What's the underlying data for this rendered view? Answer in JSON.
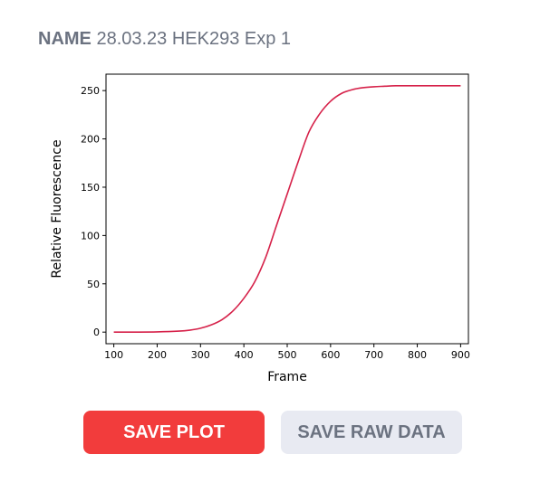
{
  "header": {
    "name_label": "NAME",
    "name_value": "28.03.23 HEK293 Exp 1"
  },
  "chart_data": {
    "type": "line",
    "xlabel": "Frame",
    "ylabel": "Relative Fluorescence",
    "xlim": [
      82,
      918
    ],
    "ylim": [
      -12,
      267
    ],
    "x_ticks": [
      100,
      200,
      300,
      400,
      500,
      600,
      700,
      800,
      900
    ],
    "y_ticks": [
      0,
      50,
      100,
      150,
      200,
      250
    ],
    "grid": false,
    "color": "#d6224a",
    "series": [
      {
        "x": [
          100,
          150,
          200,
          250,
          275,
          300,
          325,
          350,
          375,
          400,
          425,
          450,
          475,
          500,
          525,
          550,
          575,
          600,
          625,
          650,
          675,
          700,
          725,
          750,
          800,
          850,
          900
        ],
        "y": [
          0,
          0,
          0.2,
          1,
          2,
          4,
          7.5,
          13,
          22,
          35,
          52,
          77,
          110,
          143,
          176,
          207,
          226,
          239,
          247,
          251,
          253,
          254,
          254.5,
          255,
          255,
          255,
          255
        ]
      }
    ]
  },
  "actions": {
    "save_plot": "SAVE PLOT",
    "save_raw": "SAVE RAW DATA"
  }
}
